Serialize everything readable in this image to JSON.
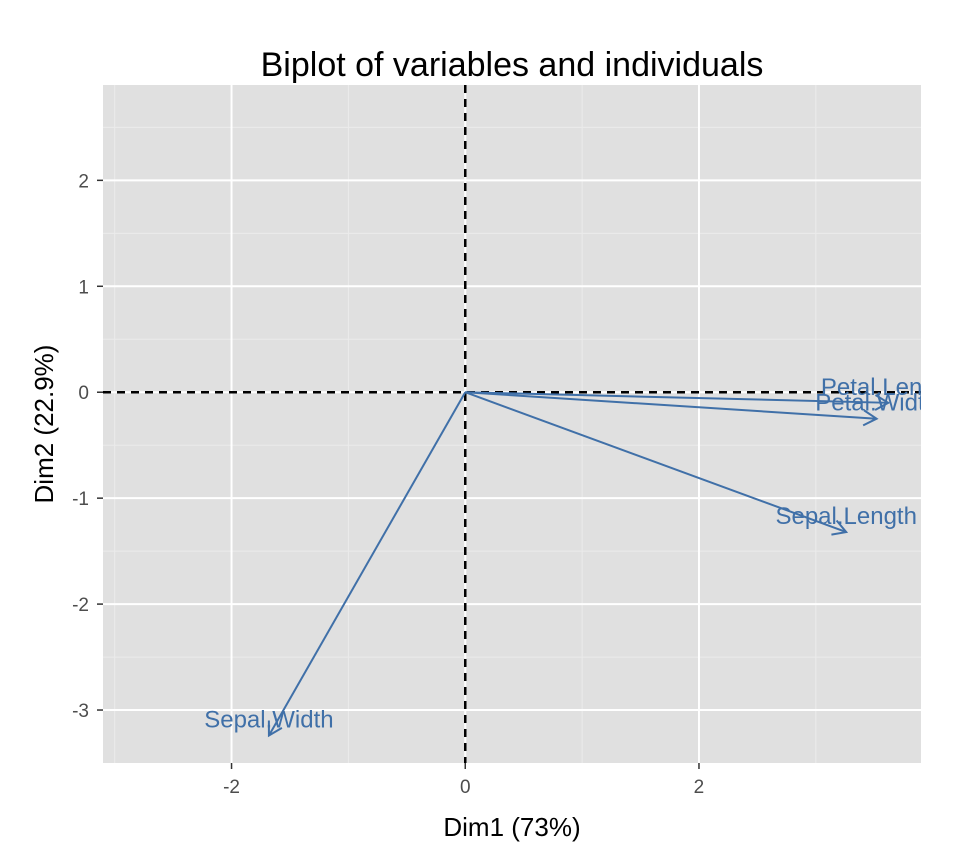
{
  "chart_data": {
    "type": "biplot",
    "title": "Biplot of variables and individuals",
    "xlabel": "Dim1 (73%)",
    "ylabel": "Dim2 (22.9%)",
    "xlim": [
      -3.1,
      3.9
    ],
    "ylim": [
      -3.5,
      2.9
    ],
    "x_ticks": [
      -2,
      0,
      2
    ],
    "y_ticks": [
      -3,
      -2,
      -1,
      0,
      1,
      2
    ],
    "grid": true,
    "reference_lines": {
      "x": 0,
      "y": 0,
      "style": "dashed"
    },
    "arrow_color": "#4070a8",
    "panel_color": "#e0e0e0",
    "variables": [
      {
        "name": "Petal.Length",
        "x": 3.62,
        "y": -0.1
      },
      {
        "name": "Petal.Width",
        "x": 3.52,
        "y": -0.25
      },
      {
        "name": "Sepal.Length",
        "x": 3.26,
        "y": -1.32
      },
      {
        "name": "Sepal.Width",
        "x": -1.68,
        "y": -3.24
      }
    ]
  }
}
